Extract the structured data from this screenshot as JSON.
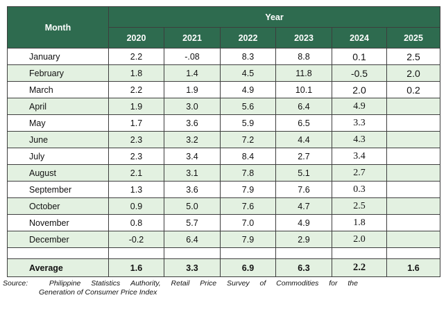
{
  "table": {
    "header": {
      "month": "Month",
      "year": "Year"
    },
    "years": [
      "2020",
      "2021",
      "2022",
      "2023",
      "2024",
      "2025"
    ],
    "rows": [
      {
        "month": "January",
        "values": [
          "2.2",
          "-.08",
          "8.3",
          "8.8",
          "0.1",
          "2.5"
        ]
      },
      {
        "month": "February",
        "values": [
          "1.8",
          "1.4",
          "4.5",
          "11.8",
          "-0.5",
          "2.0"
        ]
      },
      {
        "month": "March",
        "values": [
          "2.2",
          "1.9",
          "4.9",
          "10.1",
          "2.0",
          "0.2"
        ]
      },
      {
        "month": "April",
        "values": [
          "1.9",
          "3.0",
          "5.6",
          "6.4",
          "4.9",
          ""
        ]
      },
      {
        "month": "May",
        "values": [
          "1.7",
          "3.6",
          "5.9",
          "6.5",
          "3.3",
          ""
        ]
      },
      {
        "month": "June",
        "values": [
          "2.3",
          "3.2",
          "7.2",
          "4.4",
          "4.3",
          ""
        ]
      },
      {
        "month": "July",
        "values": [
          "2.3",
          "3.4",
          "8.4",
          "2.7",
          "3.4",
          ""
        ]
      },
      {
        "month": "August",
        "values": [
          "2.1",
          "3.1",
          "7.8",
          "5.1",
          "2.7",
          ""
        ]
      },
      {
        "month": "September",
        "values": [
          "1.3",
          "3.6",
          "7.9",
          "7.6",
          "0.3",
          ""
        ]
      },
      {
        "month": "October",
        "values": [
          "0.9",
          "5.0",
          "7.6",
          "4.7",
          "2.5",
          ""
        ]
      },
      {
        "month": "November",
        "values": [
          "0.8",
          "5.7",
          "7.0",
          "4.9",
          "1.8",
          ""
        ]
      },
      {
        "month": "December",
        "values": [
          "-0.2",
          "6.4",
          "7.9",
          "2.9",
          "2.0",
          ""
        ]
      }
    ],
    "average": {
      "label": "Average",
      "values": [
        "1.6",
        "3.3",
        "6.9",
        "6.3",
        "2.2",
        "1.6"
      ]
    }
  },
  "source": {
    "label": "Source:",
    "line1_words": [
      "Philippine",
      "Statistics",
      "Authority,",
      "Retail",
      "Price",
      "Survey",
      "of",
      "Commodities",
      "for",
      "the"
    ],
    "line2": "Generation  of Consumer Price Index"
  },
  "colors": {
    "header_bg": "#2e6b4f",
    "alt_row_bg": "#e3f1e1",
    "border": "#3d3d3d"
  }
}
